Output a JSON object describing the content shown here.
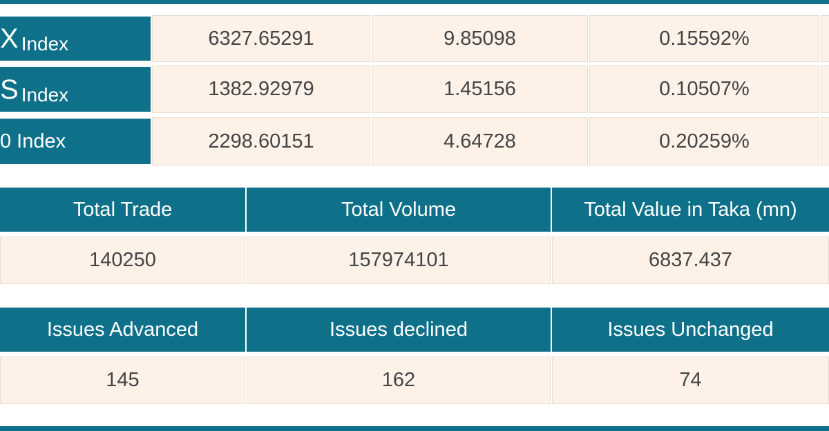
{
  "indices": [
    {
      "label": "X",
      "suffix": "Index",
      "value": "6327.65291",
      "change": "9.85098",
      "percent": "0.15592%"
    },
    {
      "label": "S",
      "suffix": "Index",
      "value": "1382.92979",
      "change": "1.45156",
      "percent": "0.10507%"
    },
    {
      "label": "0 Index",
      "value": "2298.60151",
      "change": "4.64728",
      "percent": "0.20259%"
    }
  ],
  "trade": {
    "headers": [
      "Total Trade",
      "Total Volume",
      "Total Value in Taka (mn)"
    ],
    "values": [
      "140250",
      "157974101",
      "6837.437"
    ]
  },
  "issues": {
    "headers": [
      "Issues Advanced",
      "Issues declined",
      "Issues Unchanged"
    ],
    "values": [
      "145",
      "162",
      "74"
    ]
  }
}
